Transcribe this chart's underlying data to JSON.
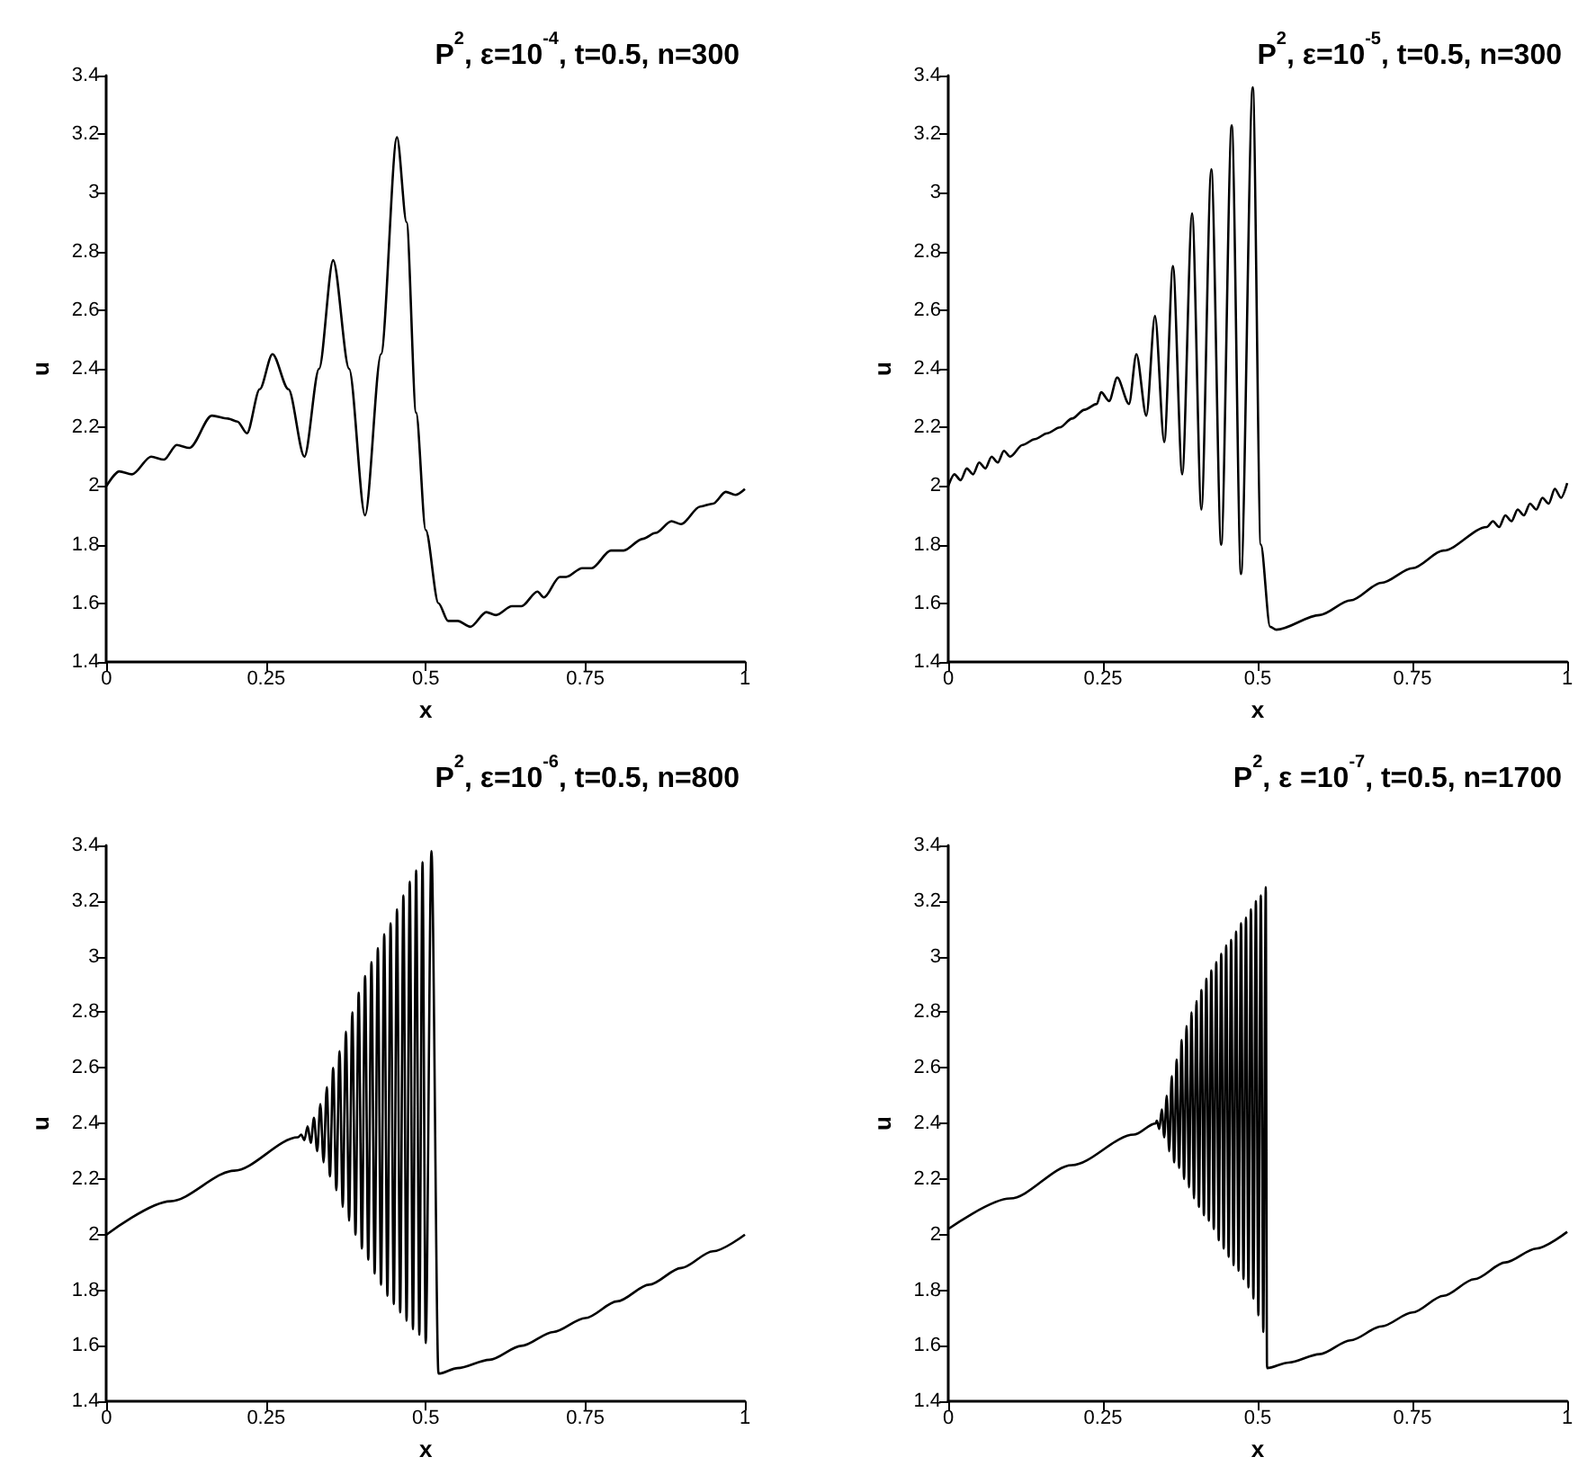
{
  "chart_data": [
    {
      "type": "line",
      "title": "P$^{2}$, ε=10$^{-4}$, t=0.5, n=300",
      "xlabel": "x",
      "ylabel": "u",
      "xlim": [
        0,
        1
      ],
      "ylim": [
        1.4,
        3.4
      ],
      "xticks": [
        0,
        0.25,
        0.5,
        0.75,
        1
      ],
      "yticks": [
        1.4,
        1.6,
        1.8,
        2,
        2.2,
        2.4,
        2.6,
        2.8,
        3,
        3.2,
        3.4
      ],
      "grid": false,
      "marker": "none",
      "x": [
        0,
        0.02,
        0.04,
        0.07,
        0.09,
        0.11,
        0.13,
        0.165,
        0.19,
        0.205,
        0.22,
        0.24,
        0.26,
        0.285,
        0.31,
        0.333,
        0.355,
        0.38,
        0.405,
        0.43,
        0.455,
        0.47,
        0.485,
        0.5,
        0.52,
        0.535,
        0.55,
        0.57,
        0.595,
        0.61,
        0.635,
        0.65,
        0.675,
        0.685,
        0.71,
        0.72,
        0.745,
        0.76,
        0.79,
        0.81,
        0.84,
        0.86,
        0.885,
        0.9,
        0.93,
        0.95,
        0.97,
        0.985,
        1.0
      ],
      "series": [
        {
          "color": "#000000",
          "values": [
            2.0,
            2.05,
            2.04,
            2.1,
            2.09,
            2.14,
            2.13,
            2.24,
            2.23,
            2.22,
            2.18,
            2.33,
            2.45,
            2.33,
            2.1,
            2.4,
            2.77,
            2.4,
            1.9,
            2.45,
            3.19,
            2.9,
            2.25,
            1.85,
            1.6,
            1.54,
            1.54,
            1.52,
            1.57,
            1.56,
            1.59,
            1.59,
            1.64,
            1.62,
            1.69,
            1.69,
            1.72,
            1.72,
            1.78,
            1.78,
            1.82,
            1.84,
            1.88,
            1.87,
            1.93,
            1.94,
            1.98,
            1.97,
            1.99
          ]
        }
      ]
    },
    {
      "type": "line",
      "title": "P$^{2}$, ε=10$^{-5}$, t=0.5, n=300",
      "xlabel": "x",
      "ylabel": "u",
      "xlim": [
        0,
        1
      ],
      "ylim": [
        1.4,
        3.4
      ],
      "xticks": [
        0,
        0.25,
        0.5,
        0.75,
        1
      ],
      "yticks": [
        1.4,
        1.6,
        1.8,
        2,
        2.2,
        2.4,
        2.6,
        2.8,
        3,
        3.2,
        3.4
      ],
      "grid": false,
      "marker": "none",
      "x": [
        0,
        0.01,
        0.02,
        0.03,
        0.04,
        0.05,
        0.06,
        0.07,
        0.08,
        0.09,
        0.1,
        0.12,
        0.14,
        0.16,
        0.18,
        0.2,
        0.22,
        0.24,
        0.247,
        0.26,
        0.273,
        0.292,
        0.304,
        0.32,
        0.334,
        0.349,
        0.363,
        0.378,
        0.394,
        0.409,
        0.425,
        0.441,
        0.458,
        0.473,
        0.492,
        0.505,
        0.52,
        0.53,
        0.6,
        0.65,
        0.7,
        0.75,
        0.8,
        0.87,
        0.88,
        0.89,
        0.9,
        0.91,
        0.92,
        0.93,
        0.94,
        0.95,
        0.96,
        0.97,
        0.98,
        0.99,
        1.0
      ],
      "series": [
        {
          "color": "#000000",
          "values": [
            2.0,
            2.04,
            2.02,
            2.06,
            2.04,
            2.08,
            2.06,
            2.1,
            2.08,
            2.12,
            2.1,
            2.14,
            2.16,
            2.18,
            2.2,
            2.23,
            2.26,
            2.28,
            2.32,
            2.29,
            2.37,
            2.28,
            2.45,
            2.24,
            2.58,
            2.15,
            2.75,
            2.04,
            2.93,
            1.92,
            3.08,
            1.8,
            3.23,
            1.7,
            3.36,
            1.8,
            1.52,
            1.51,
            1.56,
            1.61,
            1.67,
            1.72,
            1.78,
            1.86,
            1.88,
            1.86,
            1.9,
            1.88,
            1.92,
            1.9,
            1.94,
            1.92,
            1.96,
            1.94,
            1.99,
            1.96,
            2.01
          ]
        }
      ]
    },
    {
      "type": "line",
      "title": "P$^{2}$, ε=10$^{-6}$, t=0.5, n=800",
      "xlabel": "x",
      "ylabel": "u",
      "xlim": [
        0,
        1
      ],
      "ylim": [
        1.4,
        3.4
      ],
      "xticks": [
        0,
        0.25,
        0.5,
        0.75,
        1
      ],
      "yticks": [
        1.4,
        1.6,
        1.8,
        2,
        2.2,
        2.4,
        2.6,
        2.8,
        3,
        3.2,
        3.4
      ],
      "grid": false,
      "marker": "none",
      "x": [
        0,
        0.1,
        0.2,
        0.3,
        0.305,
        0.31,
        0.315,
        0.32,
        0.325,
        0.33,
        0.335,
        0.34,
        0.345,
        0.35,
        0.355,
        0.36,
        0.365,
        0.37,
        0.375,
        0.38,
        0.385,
        0.39,
        0.395,
        0.4,
        0.405,
        0.41,
        0.415,
        0.42,
        0.425,
        0.43,
        0.435,
        0.44,
        0.445,
        0.45,
        0.455,
        0.46,
        0.465,
        0.47,
        0.475,
        0.48,
        0.485,
        0.49,
        0.495,
        0.5,
        0.509,
        0.52,
        0.55,
        0.6,
        0.65,
        0.7,
        0.75,
        0.8,
        0.85,
        0.9,
        0.95,
        1.0
      ],
      "series": [
        {
          "color": "#000000",
          "values": [
            2.0,
            2.12,
            2.23,
            2.35,
            2.36,
            2.34,
            2.39,
            2.33,
            2.42,
            2.3,
            2.47,
            2.26,
            2.53,
            2.21,
            2.6,
            2.16,
            2.66,
            2.1,
            2.73,
            2.05,
            2.8,
            2.0,
            2.87,
            1.95,
            2.93,
            1.91,
            2.98,
            1.86,
            3.03,
            1.82,
            3.08,
            1.78,
            3.12,
            1.75,
            3.17,
            1.72,
            3.22,
            1.69,
            3.27,
            1.66,
            3.31,
            1.64,
            3.34,
            1.61,
            3.38,
            1.5,
            1.52,
            1.55,
            1.6,
            1.65,
            1.7,
            1.76,
            1.82,
            1.88,
            1.94,
            2.0
          ]
        }
      ]
    },
    {
      "type": "line",
      "title": "P$^{2}$, ε =10$^{-7}$, t=0.5, n=1700",
      "xlabel": "x",
      "ylabel": "u",
      "xlim": [
        0,
        1
      ],
      "ylim": [
        1.4,
        3.4
      ],
      "xticks": [
        0,
        0.25,
        0.5,
        0.75,
        1
      ],
      "yticks": [
        1.4,
        1.6,
        1.8,
        2,
        2.2,
        2.4,
        2.6,
        2.8,
        3,
        3.2,
        3.4
      ],
      "grid": false,
      "marker": "none",
      "x": [
        0,
        0.1,
        0.2,
        0.3,
        0.335,
        0.337,
        0.341,
        0.345,
        0.349,
        0.353,
        0.357,
        0.361,
        0.365,
        0.369,
        0.373,
        0.377,
        0.381,
        0.385,
        0.389,
        0.393,
        0.397,
        0.401,
        0.405,
        0.409,
        0.413,
        0.417,
        0.421,
        0.425,
        0.429,
        0.433,
        0.437,
        0.441,
        0.445,
        0.449,
        0.453,
        0.457,
        0.461,
        0.465,
        0.469,
        0.473,
        0.477,
        0.481,
        0.485,
        0.489,
        0.493,
        0.497,
        0.501,
        0.505,
        0.509,
        0.513,
        0.515,
        0.55,
        0.6,
        0.65,
        0.7,
        0.75,
        0.8,
        0.85,
        0.9,
        0.95,
        1.0
      ],
      "series": [
        {
          "color": "#000000",
          "values": [
            2.02,
            2.13,
            2.25,
            2.36,
            2.4,
            2.41,
            2.38,
            2.45,
            2.35,
            2.5,
            2.3,
            2.57,
            2.26,
            2.63,
            2.24,
            2.7,
            2.2,
            2.75,
            2.17,
            2.8,
            2.13,
            2.84,
            2.1,
            2.88,
            2.07,
            2.92,
            2.05,
            2.95,
            2.02,
            2.98,
            1.98,
            3.01,
            1.95,
            3.04,
            1.92,
            3.06,
            1.89,
            3.09,
            1.87,
            3.12,
            1.84,
            3.14,
            1.81,
            3.17,
            1.77,
            3.2,
            1.71,
            3.22,
            1.65,
            3.25,
            1.52,
            1.54,
            1.57,
            1.62,
            1.67,
            1.72,
            1.78,
            1.84,
            1.9,
            1.95,
            2.01
          ]
        }
      ]
    }
  ]
}
